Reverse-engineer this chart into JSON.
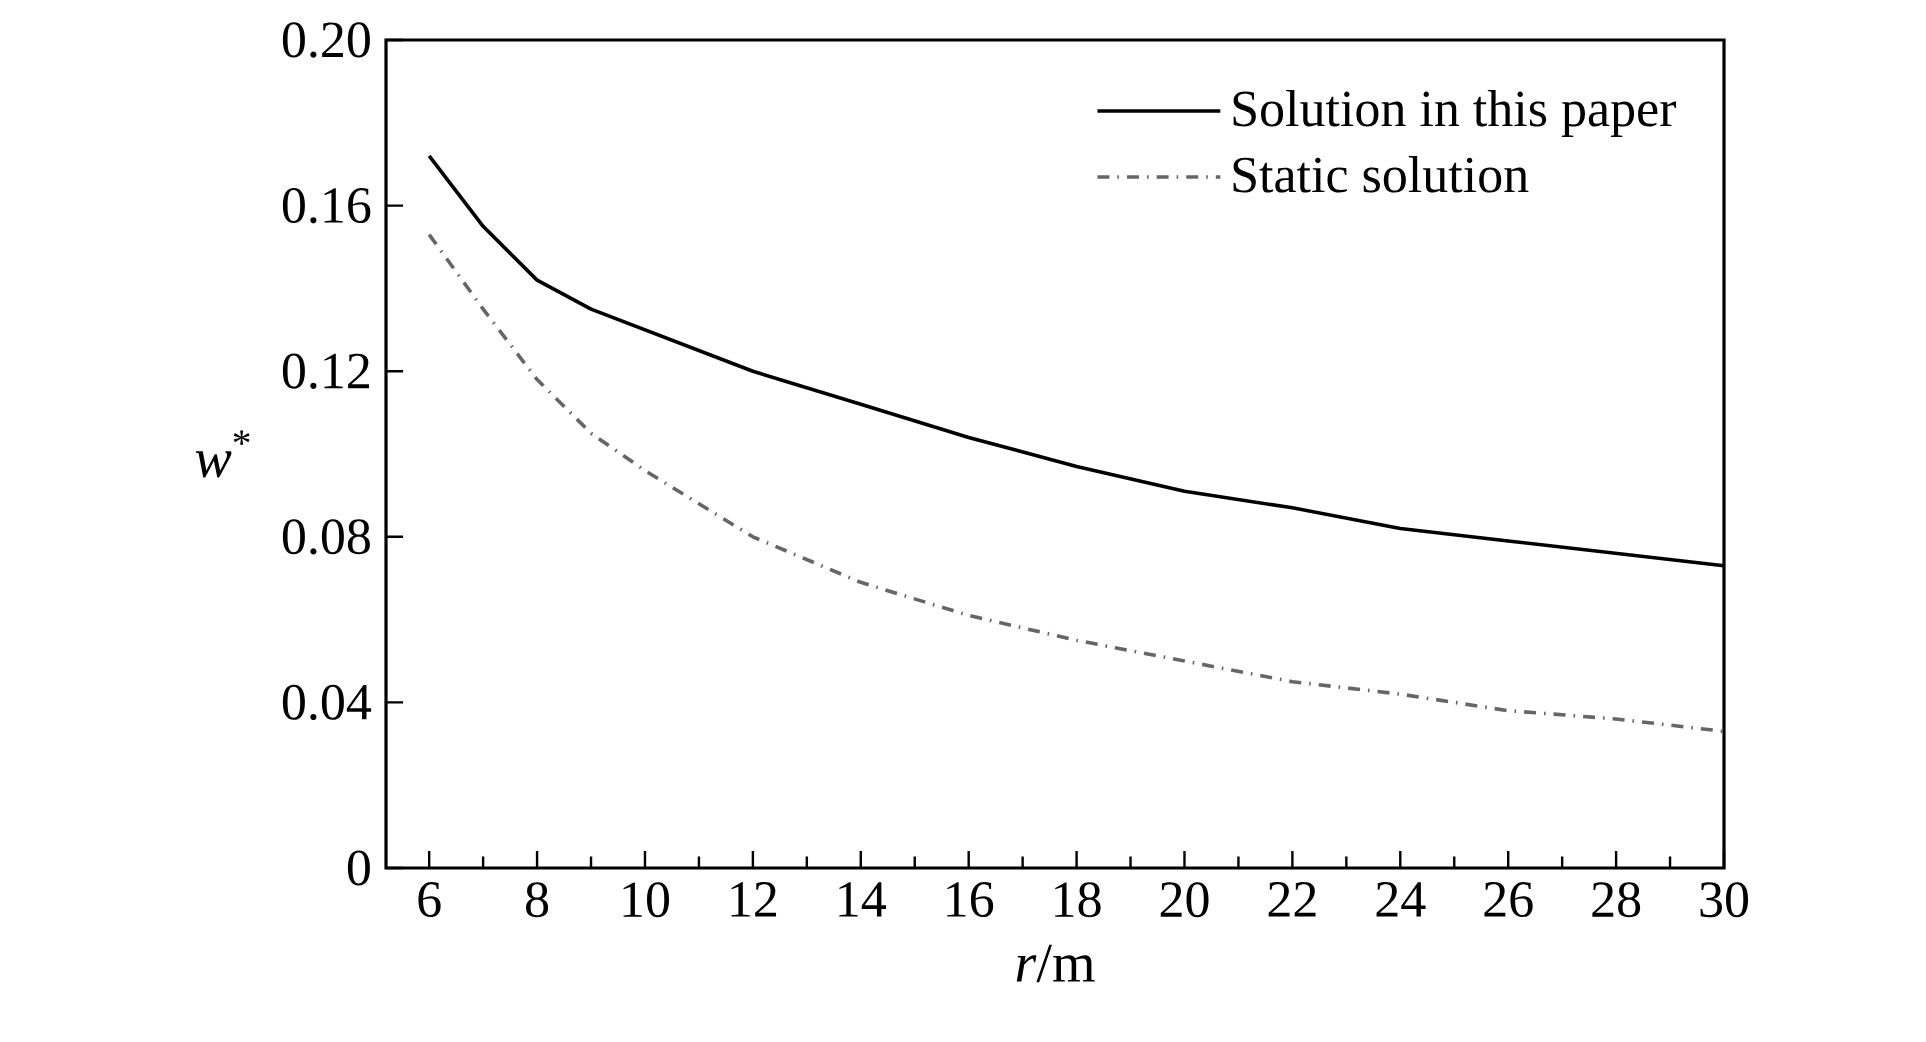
{
  "chart_data": {
    "type": "line",
    "xlabel": "*r*/m",
    "ylabel": "*w*$^{*}$",
    "x": [
      6,
      7,
      8,
      9,
      10,
      12,
      14,
      16,
      18,
      20,
      22,
      24,
      26,
      28,
      30
    ],
    "series": [
      {
        "name": "Solution in this paper",
        "color": "#000000",
        "line_style": "solid",
        "values": [
          0.172,
          0.155,
          0.142,
          0.135,
          0.13,
          0.12,
          0.112,
          0.104,
          0.097,
          0.091,
          0.087,
          0.082,
          0.079,
          0.076,
          0.073
        ]
      },
      {
        "name": "Static solution",
        "color": "#666666",
        "line_style": "dashed",
        "values": [
          0.153,
          0.135,
          0.118,
          0.105,
          0.096,
          0.08,
          0.069,
          0.061,
          0.055,
          0.05,
          0.045,
          0.042,
          0.038,
          0.036,
          0.033
        ]
      }
    ],
    "xlim": [
      5.2,
      30
    ],
    "xticks": [
      6,
      8,
      10,
      12,
      14,
      16,
      18,
      20,
      22,
      24,
      26,
      28,
      30
    ],
    "ylim": [
      0,
      0.2
    ],
    "yticks": [
      0,
      0.04,
      0.08,
      0.12,
      0.16,
      {
        "value": 0.2,
        "label": "0.20"
      }
    ],
    "legend": "top right",
    "grid": false,
    "marker": "none"
  }
}
